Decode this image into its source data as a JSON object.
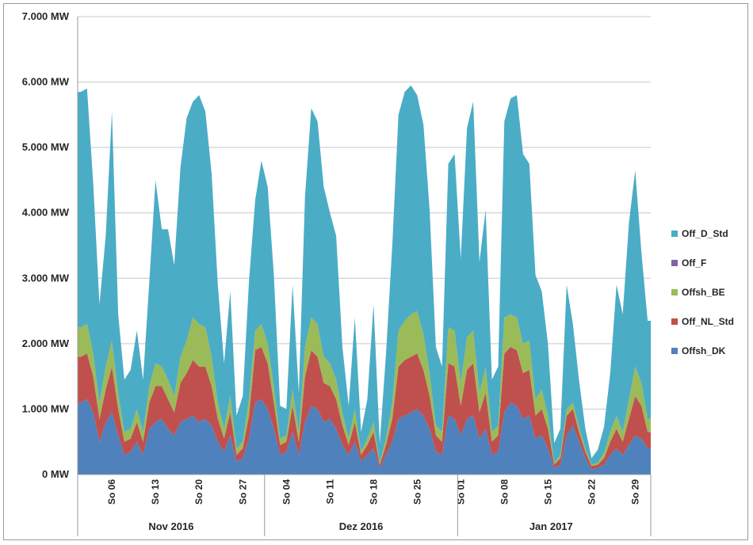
{
  "chart_data": {
    "type": "area",
    "stacked": true,
    "ylim": [
      0,
      7000
    ],
    "y_tick_values": [
      0,
      1000,
      2000,
      3000,
      4000,
      5000,
      6000,
      7000
    ],
    "y_tick_labels": [
      "0 MW",
      "1.000 MW",
      "2.000 MW",
      "3.000 MW",
      "4.000 MW",
      "5.000 MW",
      "6.000 MW",
      "7.000 MW"
    ],
    "xlim": [
      "2016-11-01",
      "2017-01-31"
    ],
    "x_ticks": [
      {
        "date": "2016-11-06",
        "label": "So 06"
      },
      {
        "date": "2016-11-13",
        "label": "So 13"
      },
      {
        "date": "2016-11-20",
        "label": "So 20"
      },
      {
        "date": "2016-11-27",
        "label": "So 27"
      },
      {
        "date": "2016-12-04",
        "label": "So 04"
      },
      {
        "date": "2016-12-11",
        "label": "So 11"
      },
      {
        "date": "2016-12-18",
        "label": "So 18"
      },
      {
        "date": "2016-12-25",
        "label": "So 25"
      },
      {
        "date": "2017-01-01",
        "label": "So 01"
      },
      {
        "date": "2017-01-08",
        "label": "So 08"
      },
      {
        "date": "2017-01-15",
        "label": "So 15"
      },
      {
        "date": "2017-01-22",
        "label": "So 22"
      },
      {
        "date": "2017-01-29",
        "label": "So 29"
      }
    ],
    "month_groups": [
      {
        "label": "Nov 2016",
        "start": "2016-11-01",
        "end": "2016-12-01"
      },
      {
        "label": "Dez 2016",
        "start": "2016-12-01",
        "end": "2017-01-01"
      },
      {
        "label": "Jan 2017",
        "start": "2017-01-01",
        "end": "2017-01-31"
      }
    ],
    "grid": true,
    "legend_position": "right",
    "legend": [
      {
        "name": "Off_D_Std",
        "color": "#4bacc6"
      },
      {
        "name": "Off_F",
        "color": "#8064a2"
      },
      {
        "name": "Offsh_BE",
        "color": "#9bbb59"
      },
      {
        "name": "Off_NL_Std",
        "color": "#c0504d"
      },
      {
        "name": "Offsh_DK",
        "color": "#4f81bd"
      }
    ],
    "x": [
      "2016-11-01",
      "2016-11-02",
      "2016-11-03",
      "2016-11-04",
      "2016-11-05",
      "2016-11-06",
      "2016-11-07",
      "2016-11-08",
      "2016-11-09",
      "2016-11-10",
      "2016-11-11",
      "2016-11-12",
      "2016-11-13",
      "2016-11-14",
      "2016-11-15",
      "2016-11-16",
      "2016-11-17",
      "2016-11-18",
      "2016-11-19",
      "2016-11-20",
      "2016-11-21",
      "2016-11-22",
      "2016-11-23",
      "2016-11-24",
      "2016-11-25",
      "2016-11-26",
      "2016-11-27",
      "2016-11-28",
      "2016-11-29",
      "2016-11-30",
      "2016-12-01",
      "2016-12-02",
      "2016-12-03",
      "2016-12-04",
      "2016-12-05",
      "2016-12-06",
      "2016-12-07",
      "2016-12-08",
      "2016-12-09",
      "2016-12-10",
      "2016-12-11",
      "2016-12-12",
      "2016-12-13",
      "2016-12-14",
      "2016-12-15",
      "2016-12-16",
      "2016-12-17",
      "2016-12-18",
      "2016-12-19",
      "2016-12-20",
      "2016-12-21",
      "2016-12-22",
      "2016-12-23",
      "2016-12-24",
      "2016-12-25",
      "2016-12-26",
      "2016-12-27",
      "2016-12-28",
      "2016-12-29",
      "2016-12-30",
      "2016-12-31",
      "2017-01-01",
      "2017-01-02",
      "2017-01-03",
      "2017-01-04",
      "2017-01-05",
      "2017-01-06",
      "2017-01-07",
      "2017-01-08",
      "2017-01-09",
      "2017-01-10",
      "2017-01-11",
      "2017-01-12",
      "2017-01-13",
      "2017-01-14",
      "2017-01-15",
      "2017-01-16",
      "2017-01-17",
      "2017-01-18",
      "2017-01-19",
      "2017-01-20",
      "2017-01-21",
      "2017-01-22",
      "2017-01-23",
      "2017-01-24",
      "2017-01-25",
      "2017-01-26",
      "2017-01-27",
      "2017-01-28",
      "2017-01-29",
      "2017-01-30",
      "2017-01-31"
    ],
    "series": [
      {
        "name": "Offsh_DK",
        "values": [
          1100,
          1150,
          950,
          500,
          800,
          950,
          600,
          300,
          350,
          500,
          300,
          700,
          800,
          850,
          700,
          600,
          800,
          850,
          900,
          800,
          850,
          750,
          500,
          350,
          600,
          200,
          250,
          550,
          1100,
          1150,
          1000,
          700,
          300,
          350,
          650,
          300,
          800,
          1050,
          1000,
          800,
          850,
          700,
          450,
          300,
          500,
          200,
          300,
          400,
          100,
          300,
          500,
          850,
          900,
          950,
          1000,
          900,
          700,
          350,
          300,
          900,
          850,
          600,
          850,
          900,
          550,
          700,
          300,
          350,
          950,
          1100,
          1050,
          850,
          900,
          550,
          600,
          400,
          100,
          150,
          600,
          750,
          500,
          250,
          80,
          100,
          150,
          300,
          400,
          300,
          450,
          600,
          550,
          400
        ]
      },
      {
        "name": "Off_NL_Std",
        "values": [
          700,
          700,
          550,
          350,
          500,
          700,
          400,
          200,
          200,
          300,
          200,
          400,
          550,
          500,
          450,
          350,
          600,
          700,
          850,
          850,
          800,
          600,
          350,
          200,
          350,
          100,
          150,
          350,
          800,
          800,
          700,
          400,
          150,
          150,
          400,
          200,
          700,
          850,
          800,
          600,
          500,
          450,
          300,
          150,
          300,
          100,
          150,
          250,
          50,
          150,
          350,
          800,
          850,
          850,
          850,
          700,
          500,
          250,
          200,
          800,
          800,
          450,
          750,
          800,
          400,
          550,
          200,
          250,
          900,
          850,
          850,
          700,
          700,
          350,
          400,
          300,
          50,
          100,
          300,
          250,
          150,
          100,
          50,
          50,
          100,
          200,
          300,
          200,
          400,
          600,
          500,
          250
        ]
      },
      {
        "name": "Offsh_BE",
        "values": [
          450,
          450,
          350,
          250,
          350,
          400,
          250,
          150,
          150,
          200,
          150,
          250,
          350,
          300,
          300,
          250,
          400,
          500,
          650,
          650,
          600,
          450,
          250,
          150,
          250,
          100,
          100,
          250,
          300,
          350,
          300,
          250,
          100,
          100,
          250,
          150,
          450,
          500,
          500,
          400,
          350,
          300,
          200,
          100,
          200,
          50,
          100,
          150,
          30,
          100,
          250,
          550,
          600,
          650,
          650,
          550,
          350,
          150,
          150,
          550,
          550,
          350,
          500,
          500,
          300,
          400,
          150,
          150,
          550,
          500,
          500,
          450,
          450,
          250,
          300,
          200,
          30,
          50,
          100,
          100,
          80,
          50,
          20,
          30,
          80,
          150,
          200,
          150,
          300,
          450,
          350,
          200
        ]
      },
      {
        "name": "Off_F",
        "values": [
          0,
          0,
          0,
          0,
          0,
          0,
          0,
          0,
          0,
          0,
          0,
          0,
          0,
          0,
          0,
          0,
          0,
          0,
          0,
          0,
          0,
          0,
          0,
          0,
          0,
          0,
          0,
          0,
          0,
          0,
          0,
          0,
          0,
          0,
          0,
          0,
          0,
          0,
          0,
          0,
          0,
          0,
          0,
          0,
          0,
          0,
          0,
          0,
          0,
          0,
          0,
          0,
          0,
          0,
          0,
          0,
          0,
          0,
          0,
          0,
          0,
          0,
          0,
          0,
          0,
          0,
          0,
          0,
          0,
          0,
          0,
          0,
          0,
          0,
          0,
          0,
          0,
          0,
          0,
          0,
          0,
          0,
          0,
          0,
          0,
          0,
          0,
          0,
          0,
          0,
          0,
          0
        ]
      },
      {
        "name": "Off_D_Std",
        "values": [
          3600,
          3600,
          2600,
          1500,
          2000,
          3500,
          1200,
          800,
          900,
          1200,
          800,
          1600,
          2800,
          2100,
          2300,
          2000,
          2900,
          3400,
          3300,
          3500,
          3300,
          2800,
          1800,
          1000,
          1600,
          500,
          700,
          1800,
          2000,
          2500,
          2400,
          1700,
          500,
          400,
          1600,
          600,
          2300,
          3200,
          3100,
          2600,
          2300,
          2200,
          1000,
          500,
          1400,
          300,
          600,
          1800,
          300,
          1300,
          2400,
          3300,
          3500,
          3500,
          3300,
          3200,
          2500,
          1200,
          1000,
          2500,
          2700,
          1900,
          3200,
          3500,
          2000,
          2400,
          800,
          900,
          3000,
          3300,
          3400,
          2900,
          2700,
          1900,
          1500,
          1100,
          300,
          400,
          1900,
          1200,
          700,
          300,
          100,
          200,
          400,
          900,
          2000,
          1800,
          2700,
          3000,
          2000,
          1500
        ]
      }
    ]
  }
}
